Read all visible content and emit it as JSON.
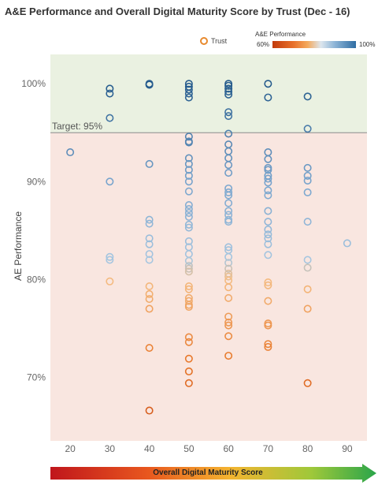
{
  "title": "A&E Performance and Overall Digital Maturity Score by Trust (Dec - 16)",
  "legend": {
    "trust_label": "Trust",
    "gradient_title": "A&E Performance",
    "gradient_min": "60%",
    "gradient_max": "100%"
  },
  "footer_label": "Overall Digital Maturity Score",
  "chart_data": {
    "type": "scatter",
    "title": "A&E Performance and Overall Digital Maturity Score by Trust (Dec - 16)",
    "xlabel": "Overall Digital Maturity Score",
    "ylabel": "AE Performance",
    "xlim": [
      15,
      95
    ],
    "ylim": [
      63.5,
      103
    ],
    "x_ticks": [
      20,
      30,
      40,
      50,
      60,
      70,
      80,
      90
    ],
    "y_ticks": [
      70,
      80,
      90,
      100
    ],
    "y_tick_labels": [
      "70%",
      "80%",
      "90%",
      "100%"
    ],
    "target": {
      "value": 95,
      "label": "Target: 95%"
    },
    "bands": [
      {
        "from": 95,
        "to": 103,
        "color": "#eaf1e1"
      },
      {
        "from": 63.5,
        "to": 95,
        "color": "#f9e6e0"
      }
    ],
    "color_scale": {
      "field": "AE Performance",
      "min": 60,
      "max": 100
    },
    "series": [
      {
        "x": 20,
        "values": [
          93.0
        ]
      },
      {
        "x": 30,
        "values": [
          99.5,
          99.0,
          96.5,
          90.0,
          82.3,
          82.0,
          79.8
        ]
      },
      {
        "x": 40,
        "values": [
          100.0,
          99.9,
          91.8,
          86.1,
          85.7,
          84.2,
          83.6,
          82.6,
          82.0,
          79.3,
          78.5,
          78.0,
          77.0,
          73.0,
          66.6
        ]
      },
      {
        "x": 50,
        "values": [
          100.0,
          99.7,
          99.4,
          99.0,
          98.6,
          94.6,
          94.1,
          94.0,
          92.4,
          91.8,
          91.2,
          90.6,
          90.0,
          89.0,
          87.6,
          87.2,
          86.8,
          86.4,
          85.6,
          85.3,
          83.9,
          83.3,
          82.6,
          81.9,
          81.4,
          81.1,
          80.8,
          79.3,
          79.0,
          78.1,
          77.8,
          77.4,
          77.2,
          74.1,
          73.6,
          71.9,
          70.6,
          69.4
        ]
      },
      {
        "x": 60,
        "values": [
          100.0,
          99.8,
          99.5,
          99.2,
          98.9,
          97.1,
          96.7,
          94.9,
          93.8,
          93.1,
          92.4,
          91.7,
          90.9,
          89.3,
          88.9,
          88.6,
          87.8,
          87.0,
          86.6,
          86.1,
          85.9,
          83.3,
          83.0,
          82.3,
          81.7,
          81.1,
          80.6,
          80.3,
          79.9,
          79.2,
          78.1,
          76.2,
          75.6,
          75.3,
          74.2,
          72.2
        ]
      },
      {
        "x": 70,
        "values": [
          100.0,
          98.6,
          93.0,
          92.3,
          91.4,
          91.2,
          90.6,
          90.3,
          89.9,
          89.1,
          88.6,
          87.0,
          85.9,
          85.1,
          84.6,
          84.2,
          83.6,
          82.5,
          79.7,
          79.4,
          77.8,
          75.5,
          75.3,
          73.4,
          73.1
        ]
      },
      {
        "x": 80,
        "values": [
          98.7,
          95.4,
          91.4,
          90.6,
          90.1,
          88.9,
          85.9,
          82.0,
          81.2,
          79.0,
          77.0,
          69.4
        ]
      },
      {
        "x": 90,
        "values": [
          83.7
        ]
      }
    ]
  }
}
